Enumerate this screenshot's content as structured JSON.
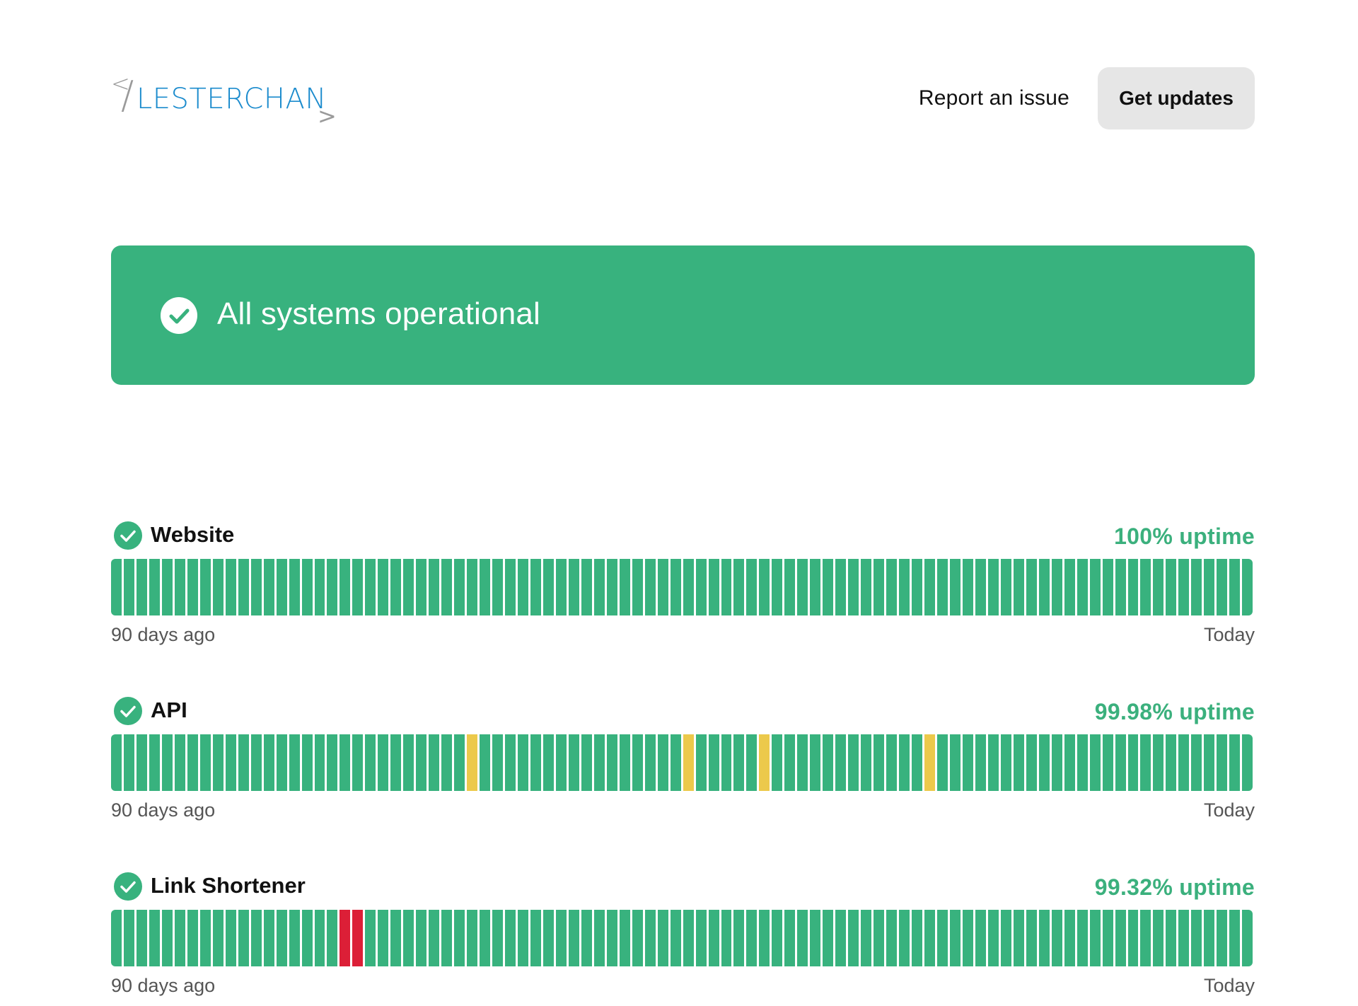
{
  "header": {
    "logo": {
      "lt": "<",
      "slash": "/",
      "word": "LESTERCHAN",
      "gt": ">"
    },
    "report_link": "Report an issue",
    "updates_button": "Get updates"
  },
  "banner": {
    "title": "All systems operational",
    "color": "#38b27e",
    "icon": "check-circle-icon"
  },
  "colors": {
    "operational": "#38b27e",
    "partial": "#ecc94b",
    "major": "#dc1f37",
    "uptime_text": "#3bb07d"
  },
  "components": [
    {
      "name": "Website",
      "uptime": "100% uptime",
      "status_icon": "check-circle-icon",
      "days": 90,
      "incidents": [],
      "range_start": "90 days ago",
      "range_end": "Today"
    },
    {
      "name": "API",
      "uptime": "99.98% uptime",
      "status_icon": "check-circle-icon",
      "days": 90,
      "incidents": [
        {
          "day": 28,
          "level": "partial"
        },
        {
          "day": 45,
          "level": "partial"
        },
        {
          "day": 51,
          "level": "partial"
        },
        {
          "day": 64,
          "level": "partial"
        }
      ],
      "range_start": "90 days ago",
      "range_end": "Today"
    },
    {
      "name": "Link Shortener",
      "uptime": "99.32% uptime",
      "status_icon": "check-circle-icon",
      "days": 90,
      "incidents": [
        {
          "day": 18,
          "level": "major"
        },
        {
          "day": 19,
          "level": "major"
        }
      ],
      "range_start": "90 days ago",
      "range_end": "Today"
    }
  ]
}
